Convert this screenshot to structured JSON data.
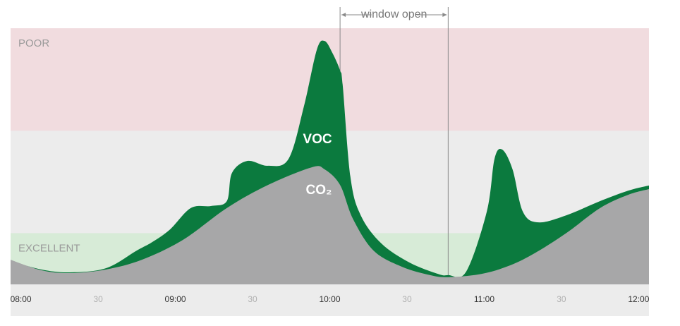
{
  "chart_data": {
    "type": "area",
    "annotation": {
      "label": "window open",
      "range": [
        124,
        166
      ]
    },
    "bands": [
      {
        "label": "POOR",
        "range": [
          60,
          100
        ],
        "color": "#f1dcdf"
      },
      {
        "label": "EXCELLENT",
        "range": [
          0,
          20
        ],
        "color": "#d7ebd7"
      }
    ],
    "xlim": [
      -4,
      244
    ],
    "ylim": [
      0,
      100
    ],
    "xticks": [
      {
        "value": 0,
        "label": "08:00"
      },
      {
        "value": 30,
        "label": "30"
      },
      {
        "value": 60,
        "label": "09:00"
      },
      {
        "value": 90,
        "label": "30"
      },
      {
        "value": 120,
        "label": "10:00"
      },
      {
        "value": 150,
        "label": "30"
      },
      {
        "value": 180,
        "label": "11:00"
      },
      {
        "value": 210,
        "label": "30"
      },
      {
        "value": 240,
        "label": "12:00"
      }
    ],
    "series": [
      {
        "name": "VOC",
        "color": "#0b7a3e",
        "x": [
          -4,
          8,
          19,
          33,
          45,
          51,
          58,
          66,
          74,
          80,
          82,
          88,
          96,
          104,
          110,
          115,
          118,
          121,
          124,
          125,
          128,
          132,
          140,
          151,
          162,
          166,
          173,
          181,
          184,
          187,
          191,
          195,
          201,
          212,
          225,
          236,
          244
        ],
        "values": [
          9.1,
          5.8,
          4.7,
          6.3,
          13.2,
          16.5,
          21.5,
          29.8,
          30.6,
          32.5,
          43.5,
          48.2,
          46.3,
          49,
          69.7,
          91.7,
          95,
          90.4,
          83.5,
          78,
          42.1,
          27,
          16,
          8.5,
          4.1,
          3.6,
          5,
          28.4,
          49,
          52.6,
          44.9,
          28.4,
          24.2,
          27,
          32.5,
          36.6,
          38.6
        ]
      },
      {
        "name": "CO₂",
        "color": "#a7a7a8",
        "x": [
          -4,
          8,
          19,
          33,
          47,
          63,
          80,
          96,
          113,
          118,
          124,
          129,
          137,
          148,
          159,
          166,
          179,
          190,
          200,
          212,
          225,
          236,
          244
        ],
        "values": [
          9.6,
          5.5,
          4.4,
          5.8,
          9.6,
          17.4,
          29.8,
          38.8,
          45.7,
          44.9,
          38.8,
          25.6,
          13.2,
          6.9,
          3.6,
          2.8,
          4.1,
          7.4,
          12.4,
          20.1,
          29.8,
          35,
          37.2
        ]
      }
    ]
  }
}
